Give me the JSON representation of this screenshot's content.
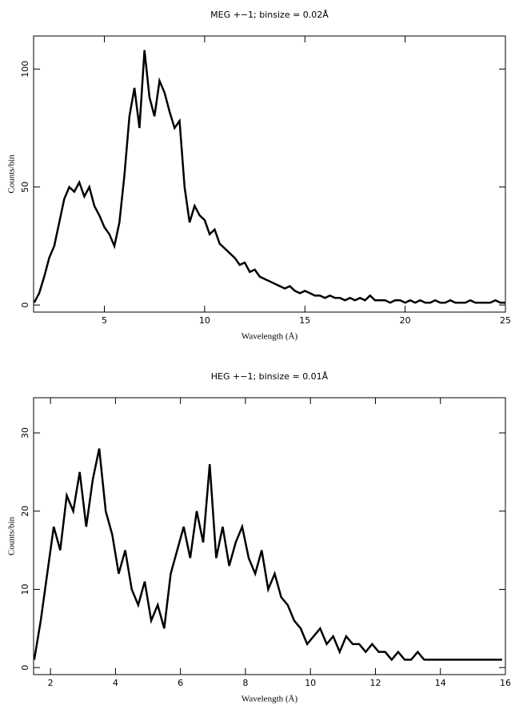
{
  "chart_data": [
    {
      "type": "line",
      "title": "MEG +−1; binsize = 0.02Å",
      "xlabel": "Wavelength (Å)",
      "ylabel": "Counts/bin",
      "x": [
        1.5,
        1.75,
        2,
        2.25,
        2.5,
        2.75,
        3,
        3.25,
        3.5,
        3.75,
        4,
        4.25,
        4.5,
        4.75,
        5,
        5.25,
        5.5,
        5.75,
        6,
        6.25,
        6.5,
        6.75,
        7,
        7.25,
        7.5,
        7.75,
        8,
        8.25,
        8.5,
        8.75,
        9,
        9.25,
        9.5,
        9.75,
        10,
        10.25,
        10.5,
        10.75,
        11,
        11.25,
        11.5,
        11.75,
        12,
        12.25,
        12.5,
        12.75,
        13,
        13.25,
        13.5,
        13.75,
        14,
        14.25,
        14.5,
        14.75,
        15,
        15.25,
        15.5,
        15.75,
        16,
        16.25,
        16.5,
        16.75,
        17,
        17.25,
        17.5,
        17.75,
        18,
        18.25,
        18.5,
        18.75,
        19,
        19.25,
        19.5,
        19.75,
        20,
        20.25,
        20.5,
        20.75,
        21,
        21.25,
        21.5,
        21.75,
        22,
        22.25,
        22.5,
        22.75,
        23,
        23.25,
        23.5,
        23.75,
        24,
        24.25,
        24.5,
        24.75,
        25
      ],
      "values": [
        1,
        5,
        12,
        20,
        25,
        35,
        45,
        50,
        48,
        52,
        46,
        50,
        42,
        38,
        33,
        30,
        25,
        35,
        55,
        80,
        92,
        75,
        108,
        88,
        80,
        95,
        90,
        82,
        75,
        78,
        50,
        35,
        42,
        38,
        36,
        30,
        32,
        26,
        24,
        22,
        20,
        17,
        18,
        14,
        15,
        12,
        11,
        10,
        9,
        8,
        7,
        8,
        6,
        5,
        6,
        5,
        4,
        4,
        3,
        4,
        3,
        3,
        2,
        3,
        2,
        3,
        2,
        4,
        2,
        2,
        2,
        1,
        2,
        2,
        1,
        2,
        1,
        2,
        1,
        1,
        2,
        1,
        1,
        2,
        1,
        1,
        1,
        2,
        1,
        1,
        1,
        1,
        2,
        1,
        1
      ],
      "color": "#000000",
      "xlim": [
        1.47,
        25
      ],
      "ylim": [
        -3,
        114
      ],
      "xticks": [
        5,
        10,
        15,
        20,
        25
      ],
      "yticks": [
        0,
        50,
        100
      ]
    },
    {
      "type": "line",
      "title": "HEG +−1; binsize = 0.01Å",
      "xlabel": "Wavelength (Å)",
      "ylabel": "Counts/bin",
      "x": [
        1.5,
        1.7,
        1.9,
        2.1,
        2.3,
        2.5,
        2.7,
        2.9,
        3.1,
        3.3,
        3.5,
        3.7,
        3.9,
        4.1,
        4.3,
        4.5,
        4.7,
        4.9,
        5.1,
        5.3,
        5.5,
        5.7,
        5.9,
        6.1,
        6.3,
        6.5,
        6.7,
        6.9,
        7.1,
        7.3,
        7.5,
        7.7,
        7.9,
        8.1,
        8.3,
        8.5,
        8.7,
        8.9,
        9.1,
        9.3,
        9.5,
        9.7,
        9.9,
        10.1,
        10.3,
        10.5,
        10.7,
        10.9,
        11.1,
        11.3,
        11.5,
        11.7,
        11.9,
        12.1,
        12.3,
        12.5,
        12.7,
        12.9,
        13.1,
        13.3,
        13.5,
        13.7,
        13.9,
        14.1,
        14.3,
        14.5,
        14.7,
        14.9,
        15.1,
        15.3,
        15.5,
        15.7,
        15.9
      ],
      "values": [
        1,
        6,
        12,
        18,
        15,
        22,
        20,
        25,
        18,
        24,
        28,
        20,
        17,
        12,
        15,
        10,
        8,
        11,
        6,
        8,
        5,
        12,
        15,
        18,
        14,
        20,
        16,
        26,
        14,
        18,
        13,
        16,
        18,
        14,
        12,
        15,
        10,
        12,
        9,
        8,
        6,
        5,
        3,
        4,
        5,
        3,
        4,
        2,
        4,
        3,
        3,
        2,
        3,
        2,
        2,
        1,
        2,
        1,
        1,
        2,
        1,
        1,
        1,
        1,
        1,
        1,
        1,
        1,
        1,
        1,
        1,
        1,
        1
      ],
      "color": "#000000",
      "xlim": [
        1.48,
        16
      ],
      "ylim": [
        -0.9,
        34.5
      ],
      "xticks": [
        2,
        4,
        6,
        8,
        10,
        12,
        14,
        16
      ],
      "yticks": [
        0,
        10,
        20,
        30
      ]
    }
  ]
}
